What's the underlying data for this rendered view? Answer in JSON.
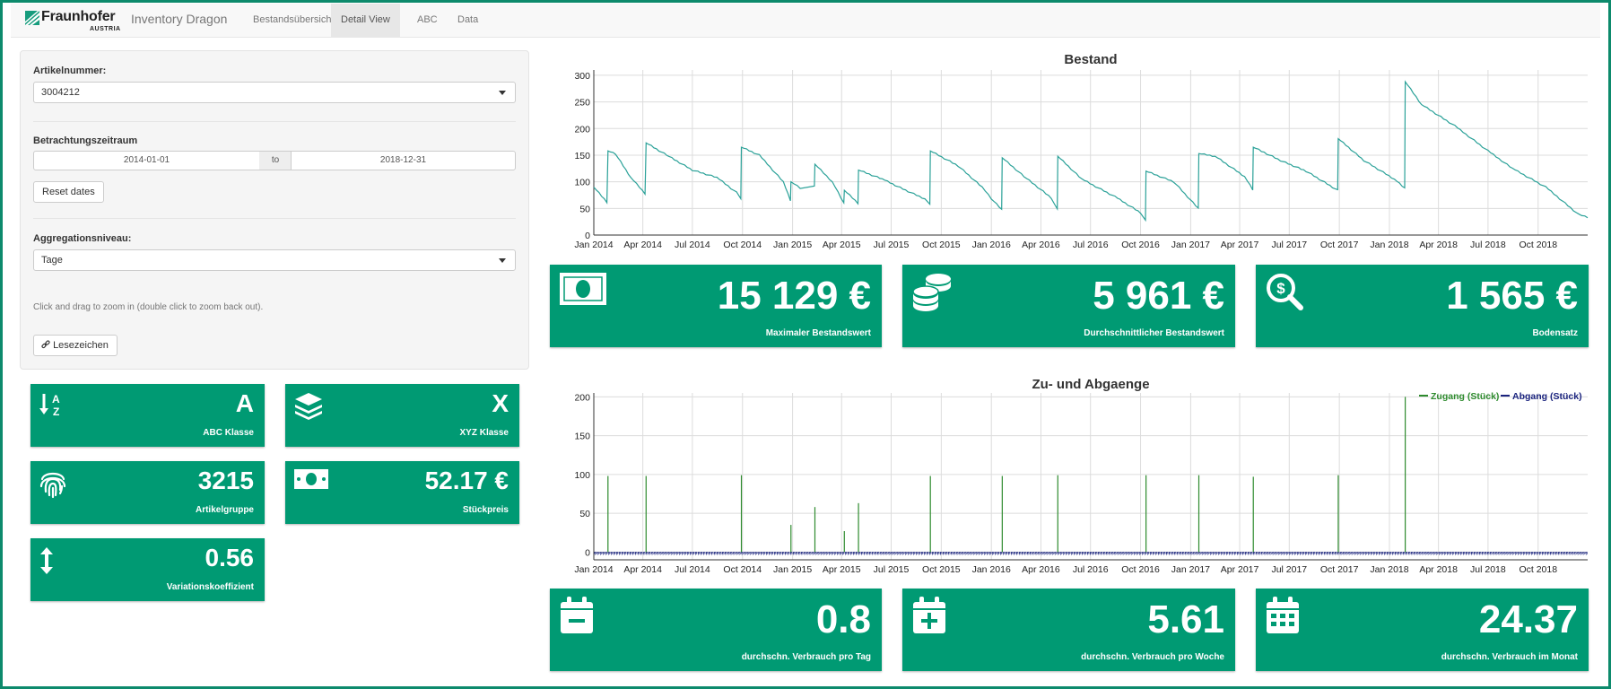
{
  "navbar": {
    "logo_text": "Fraunhofer",
    "logo_sub": "AUSTRIA",
    "app_title": "Inventory Dragon",
    "tabs": [
      "Bestandsübersicht",
      "Detail View",
      "ABC",
      "Data"
    ],
    "active_tab": "Detail View"
  },
  "sidebar": {
    "article_label": "Artikelnummer:",
    "article_value": "3004212",
    "period_label": "Betrachtungszeitraum",
    "date_from": "2014-01-01",
    "date_to_label": "to",
    "date_to": "2018-12-31",
    "reset_button": "Reset dates",
    "aggregation_label": "Aggregationsniveau:",
    "aggregation_value": "Tage",
    "zoom_hint": "Click and drag to zoom in (double click to zoom back out).",
    "bookmark_button": "Lesezeichen"
  },
  "small_boxes": {
    "abc": {
      "value": "A",
      "label": "ABC Klasse",
      "icon": "sort-alpha-icon"
    },
    "xyz": {
      "value": "X",
      "label": "XYZ Klasse",
      "icon": "layers-icon"
    },
    "group": {
      "value": "3215",
      "label": "Artikelgruppe",
      "icon": "fingerprint-icon"
    },
    "price": {
      "value": "52.17 €",
      "label": "Stückpreis",
      "icon": "money-bill-icon"
    },
    "cv": {
      "value": "0.56",
      "label": "Variationskoeffizient",
      "icon": "arrows-vertical-icon"
    }
  },
  "large_boxes": {
    "max_value": {
      "value": "15 129 €",
      "label": "Maximaler Bestandswert",
      "icon": "money-bill-icon"
    },
    "avg_value": {
      "value": "5 961 €",
      "label": "Durchschnittlicher Bestandswert",
      "icon": "coins-icon"
    },
    "residual": {
      "value": "1 565 €",
      "label": "Bodensatz",
      "icon": "search-dollar-icon"
    },
    "per_day": {
      "value": "0.8",
      "label": "durchschn. Verbrauch pro Tag",
      "icon": "calendar-minus-icon"
    },
    "per_week": {
      "value": "5.61",
      "label": "durchschn. Verbrauch pro Woche",
      "icon": "calendar-plus-icon"
    },
    "per_month": {
      "value": "24.37",
      "label": "durchschn. Verbrauch im Monat",
      "icon": "calendar-grid-icon"
    }
  },
  "colors": {
    "accent": "#009a73",
    "stock_line": "#2aa198",
    "zugang": "#2e8b2e",
    "abgang": "#1a237e"
  },
  "chart_data": [
    {
      "type": "line",
      "title": "Bestand",
      "x_range": [
        "2014-01-01",
        "2018-12-31"
      ],
      "x_ticks": [
        "Jan 2014",
        "Apr 2014",
        "Jul 2014",
        "Oct 2014",
        "Jan 2015",
        "Apr 2015",
        "Jul 2015",
        "Oct 2015",
        "Jan 2016",
        "Apr 2016",
        "Jul 2016",
        "Oct 2016",
        "Jan 2017",
        "Apr 2017",
        "Jul 2017",
        "Oct 2017",
        "Jan 2018",
        "Apr 2018",
        "Jul 2018",
        "Oct 2018"
      ],
      "y_ticks": [
        "300",
        "250",
        "200",
        "150",
        "100",
        "50",
        "0"
      ],
      "ylim": [
        0,
        310
      ],
      "grid": true,
      "series": [
        {
          "points": [
            [
              "2014-01-01",
              90
            ],
            [
              "2014-01-25",
              62
            ],
            [
              "2014-01-27",
              158
            ],
            [
              "2014-02-10",
              152
            ],
            [
              "2014-03-10",
              108
            ],
            [
              "2014-04-05",
              78
            ],
            [
              "2014-04-07",
              173
            ],
            [
              "2014-05-15",
              150
            ],
            [
              "2014-07-01",
              122
            ],
            [
              "2014-08-15",
              108
            ],
            [
              "2014-09-20",
              80
            ],
            [
              "2014-09-28",
              68
            ],
            [
              "2014-09-29",
              165
            ],
            [
              "2014-11-01",
              150
            ],
            [
              "2014-12-15",
              100
            ],
            [
              "2014-12-28",
              65
            ],
            [
              "2014-12-29",
              100
            ],
            [
              "2015-01-15",
              88
            ],
            [
              "2015-02-10",
              92
            ],
            [
              "2015-02-11",
              133
            ],
            [
              "2015-03-15",
              100
            ],
            [
              "2015-04-05",
              60
            ],
            [
              "2015-04-06",
              84
            ],
            [
              "2015-05-01",
              60
            ],
            [
              "2015-05-02",
              122
            ],
            [
              "2015-06-15",
              105
            ],
            [
              "2015-08-01",
              82
            ],
            [
              "2015-09-01",
              68
            ],
            [
              "2015-09-10",
              58
            ],
            [
              "2015-09-11",
              158
            ],
            [
              "2015-11-01",
              130
            ],
            [
              "2015-12-15",
              90
            ],
            [
              "2016-01-01",
              68
            ],
            [
              "2016-01-20",
              48
            ],
            [
              "2016-01-21",
              145
            ],
            [
              "2016-03-01",
              110
            ],
            [
              "2016-04-20",
              70
            ],
            [
              "2016-05-01",
              48
            ],
            [
              "2016-05-02",
              148
            ],
            [
              "2016-06-15",
              105
            ],
            [
              "2016-08-15",
              72
            ],
            [
              "2016-10-01",
              42
            ],
            [
              "2016-10-10",
              28
            ],
            [
              "2016-10-11",
              120
            ],
            [
              "2016-12-01",
              100
            ],
            [
              "2017-01-15",
              50
            ],
            [
              "2017-01-16",
              153
            ],
            [
              "2017-02-15",
              148
            ],
            [
              "2017-04-10",
              110
            ],
            [
              "2017-04-25",
              85
            ],
            [
              "2017-04-26",
              165
            ],
            [
              "2017-06-15",
              140
            ],
            [
              "2017-08-01",
              120
            ],
            [
              "2017-09-28",
              84
            ],
            [
              "2017-09-29",
              181
            ],
            [
              "2017-11-15",
              140
            ],
            [
              "2018-01-10",
              105
            ],
            [
              "2018-01-29",
              88
            ],
            [
              "2018-01-30",
              288
            ],
            [
              "2018-03-01",
              245
            ],
            [
              "2018-05-01",
              205
            ],
            [
              "2018-07-01",
              158
            ],
            [
              "2018-08-15",
              125
            ],
            [
              "2018-10-15",
              90
            ],
            [
              "2018-12-15",
              38
            ],
            [
              "2018-12-31",
              33
            ]
          ]
        }
      ]
    },
    {
      "type": "line",
      "title": "Zu- und Abgaenge",
      "x_range": [
        "2014-01-01",
        "2018-12-31"
      ],
      "x_ticks": [
        "Jan 2014",
        "Apr 2014",
        "Jul 2014",
        "Oct 2014",
        "Jan 2015",
        "Apr 2015",
        "Jul 2015",
        "Oct 2015",
        "Jan 2016",
        "Apr 2016",
        "Jul 2016",
        "Oct 2016",
        "Jan 2017",
        "Apr 2017",
        "Jul 2017",
        "Oct 2017",
        "Jan 2018",
        "Apr 2018",
        "Jul 2018",
        "Oct 2018"
      ],
      "y_ticks": [
        "200",
        "150",
        "100",
        "50",
        "0"
      ],
      "ylim": [
        -10,
        205
      ],
      "grid": true,
      "legend": "top-right",
      "series": [
        {
          "name": "Zugang (Stück)",
          "spikes": [
            [
              "2014-01-27",
              98
            ],
            [
              "2014-04-07",
              98
            ],
            [
              "2014-09-29",
              99
            ],
            [
              "2014-12-29",
              35
            ],
            [
              "2015-02-11",
              58
            ],
            [
              "2015-04-06",
              27
            ],
            [
              "2015-05-02",
              63
            ],
            [
              "2015-09-11",
              98
            ],
            [
              "2016-01-21",
              98
            ],
            [
              "2016-05-02",
              99
            ],
            [
              "2016-10-11",
              99
            ],
            [
              "2017-01-16",
              99
            ],
            [
              "2017-04-26",
              97
            ],
            [
              "2017-09-29",
              99
            ],
            [
              "2018-01-30",
              200
            ]
          ]
        },
        {
          "name": "Abgang (Stück)",
          "daily_range": [
            -4,
            0
          ]
        }
      ]
    }
  ]
}
